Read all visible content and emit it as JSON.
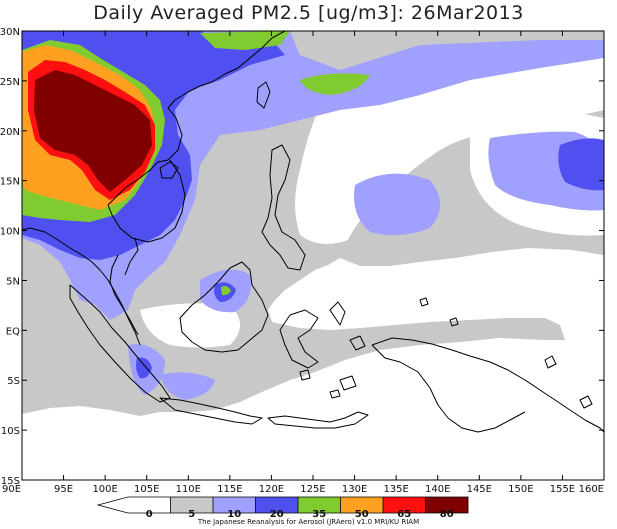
{
  "title": "Daily Averaged PM2.5 [ug/m3]: 26Mar2013",
  "credit": "The Japanese Reanalysis for Aerosol (JRAero) v1.0 MRI/KU RIAM",
  "lon_labels": [
    "90E",
    "95E",
    "100E",
    "105E",
    "110E",
    "115E",
    "120E",
    "125E",
    "130E",
    "135E",
    "140E",
    "145E",
    "150E",
    "155E",
    "160E"
  ],
  "lat_labels": [
    "30N",
    "25N",
    "20N",
    "15N",
    "10N",
    "5N",
    "EQ",
    "5S",
    "10S",
    "15S"
  ],
  "colorbar": {
    "levels": [
      "0",
      "5",
      "10",
      "20",
      "35",
      "50",
      "65",
      "80"
    ],
    "colors": [
      "#ffffff",
      "#c8c8c8",
      "#a0a0ff",
      "#5050f0",
      "#80cc30",
      "#ffa020",
      "#ff1010",
      "#800000"
    ]
  }
}
